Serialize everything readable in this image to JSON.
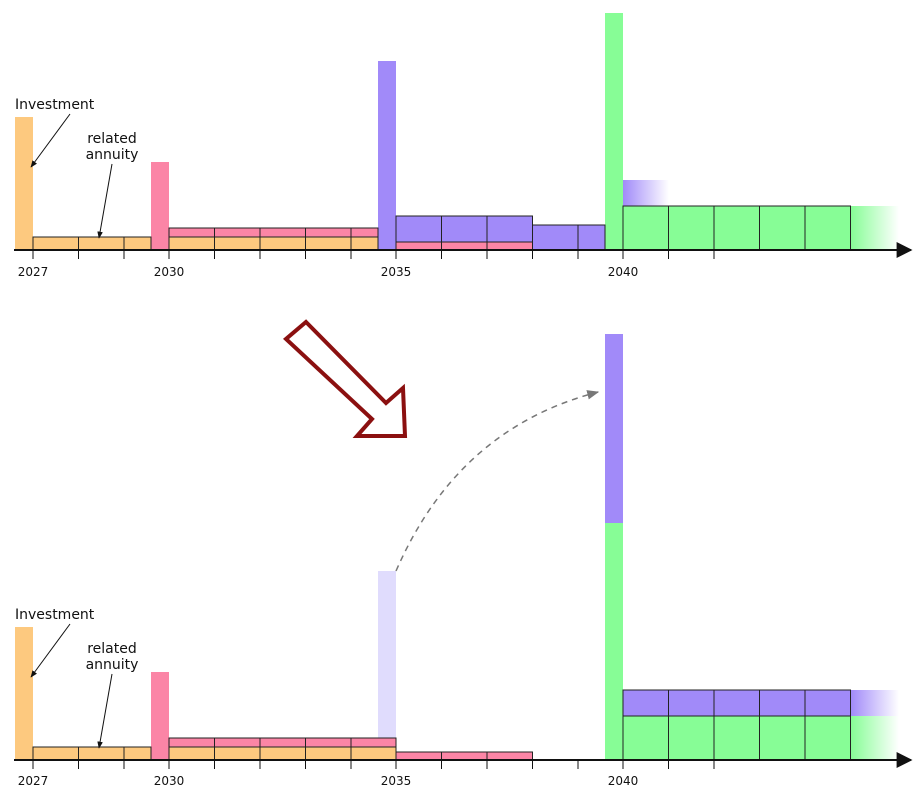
{
  "colors": {
    "orange": "#fdc97f",
    "pink": "#fb85a6",
    "purple": "#a18af9",
    "green": "#87fd96",
    "faded_purple": "#e0dcfd",
    "arrow": "#8b1010",
    "outline": "#222222"
  },
  "years": {
    "y2027": "2027",
    "y2030": "2030",
    "y2035": "2035",
    "y2040": "2040"
  },
  "labels": {
    "investment": "Investment",
    "related_line1": "related",
    "related_line2": "annuity"
  },
  "panels": [
    {
      "id": "before"
    },
    {
      "id": "after"
    }
  ],
  "icons": {
    "transition_arrow": "down-right-hollow-arrow-icon",
    "deferral_arrow": "dashed-curved-arrow-icon"
  }
}
